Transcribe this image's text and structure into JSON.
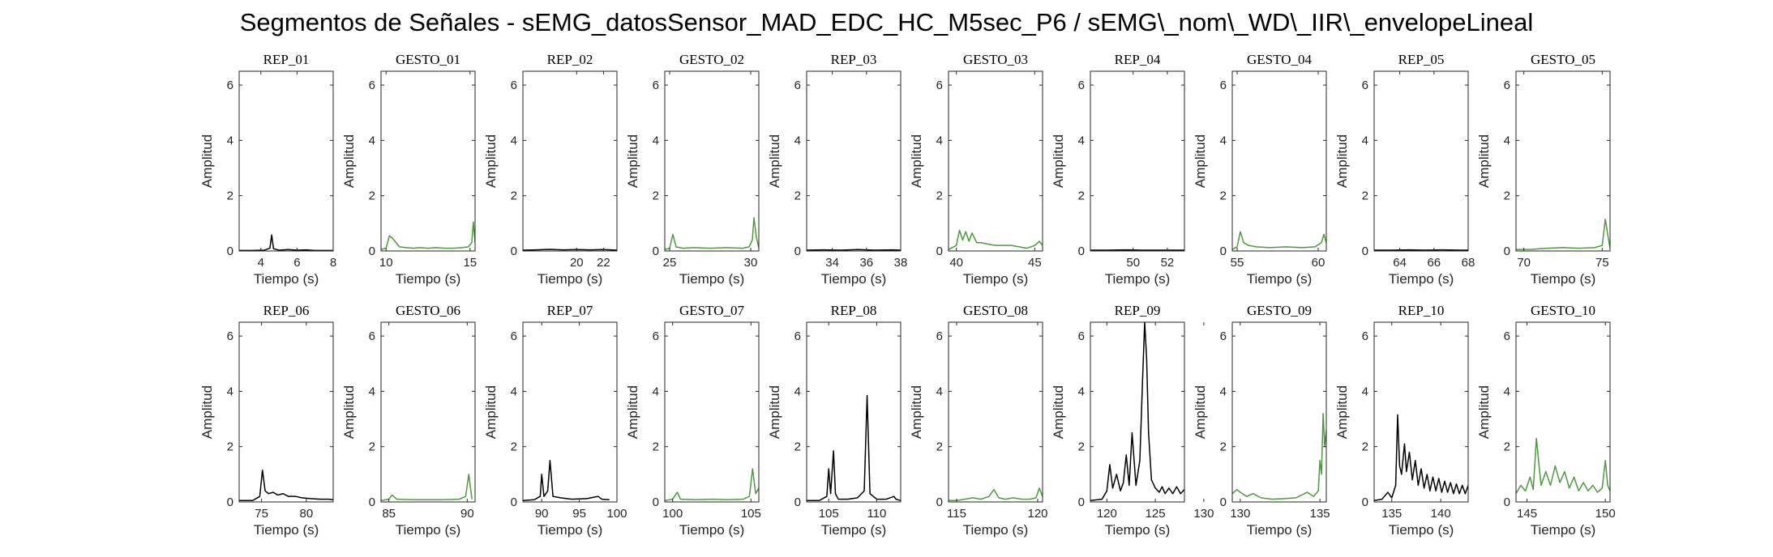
{
  "title": "Segmentos de Señales - sEMG_datosSensor_MAD_EDC_HC_M5sec_P6 / sEMG\\_nom\\_WD\\_IIR\\_envelopeLineal",
  "colors": {
    "rep": "#000000",
    "gesto": "#4e9a3f",
    "axis": "#262626"
  },
  "chart_data": [
    {
      "type": "line",
      "title": "REP_01",
      "xlabel": "Tiempo (s)",
      "ylabel": "Amplitud",
      "xlim": [
        2.8,
        8
      ],
      "ylim": [
        0,
        6.5
      ],
      "xticks": [
        4,
        6,
        8
      ],
      "yticks": [
        0,
        2,
        4,
        6
      ],
      "color": "rep",
      "x": [
        2.8,
        3.5,
        4.2,
        4.5,
        4.6,
        4.7,
        5.0,
        5.5,
        6.0,
        6.5,
        7.0,
        7.5,
        8.0
      ],
      "y": [
        0.02,
        0.02,
        0.03,
        0.1,
        0.58,
        0.08,
        0.03,
        0.05,
        0.03,
        0.04,
        0.02,
        0.02,
        0.02
      ]
    },
    {
      "type": "line",
      "title": "GESTO_01",
      "xlabel": "Tiempo (s)",
      "ylabel": "Amplitud",
      "xlim": [
        9.7,
        15.3
      ],
      "ylim": [
        0,
        6.5
      ],
      "xticks": [
        10,
        15
      ],
      "yticks": [
        0,
        2,
        4,
        6
      ],
      "color": "gesto",
      "x": [
        9.7,
        10.0,
        10.2,
        10.4,
        10.6,
        10.8,
        11.2,
        11.6,
        12.0,
        12.5,
        13.0,
        13.5,
        14.0,
        14.5,
        14.9,
        15.1,
        15.2,
        15.3
      ],
      "y": [
        0.05,
        0.1,
        0.55,
        0.45,
        0.3,
        0.15,
        0.12,
        0.1,
        0.12,
        0.1,
        0.12,
        0.1,
        0.1,
        0.12,
        0.15,
        0.3,
        1.05,
        0.3
      ]
    },
    {
      "type": "line",
      "title": "REP_02",
      "xlabel": "Tiempo (s)",
      "ylabel": "Amplitud",
      "xlim": [
        16,
        23
      ],
      "ylim": [
        0,
        6.5
      ],
      "xticks": [
        20,
        22
      ],
      "yticks": [
        0,
        2,
        4,
        6
      ],
      "color": "rep",
      "x": [
        16,
        17,
        18,
        19,
        20,
        21,
        22,
        23
      ],
      "y": [
        0.03,
        0.04,
        0.06,
        0.04,
        0.05,
        0.04,
        0.05,
        0.03
      ]
    },
    {
      "type": "line",
      "title": "GESTO_02",
      "xlabel": "Tiempo (s)",
      "ylabel": "Amplitud",
      "xlim": [
        24.7,
        30.5
      ],
      "ylim": [
        0,
        6.5
      ],
      "xticks": [
        25,
        30
      ],
      "yticks": [
        0,
        2,
        4,
        6
      ],
      "color": "gesto",
      "x": [
        24.7,
        25.0,
        25.2,
        25.4,
        25.8,
        26.5,
        27.5,
        28.5,
        29.5,
        29.9,
        30.1,
        30.2,
        30.35,
        30.5
      ],
      "y": [
        0.05,
        0.1,
        0.6,
        0.15,
        0.1,
        0.12,
        0.1,
        0.12,
        0.1,
        0.15,
        0.4,
        1.2,
        0.5,
        0.1
      ]
    },
    {
      "type": "line",
      "title": "REP_03",
      "xlabel": "Tiempo (s)",
      "ylabel": "Amplitud",
      "xlim": [
        32.5,
        38
      ],
      "ylim": [
        0,
        6.5
      ],
      "xticks": [
        34,
        36,
        38
      ],
      "yticks": [
        0,
        2,
        4,
        6
      ],
      "color": "rep",
      "x": [
        32.5,
        33.5,
        34.5,
        35.5,
        36.5,
        37.5,
        38
      ],
      "y": [
        0.03,
        0.04,
        0.03,
        0.05,
        0.03,
        0.04,
        0.03
      ]
    },
    {
      "type": "line",
      "title": "GESTO_03",
      "xlabel": "Tiempo (s)",
      "ylabel": "Amplitud",
      "xlim": [
        39.5,
        45.5
      ],
      "ylim": [
        0,
        6.5
      ],
      "xticks": [
        40,
        45
      ],
      "yticks": [
        0,
        2,
        4,
        6
      ],
      "color": "gesto",
      "x": [
        39.5,
        40.0,
        40.2,
        40.4,
        40.6,
        40.8,
        41.0,
        41.3,
        41.6,
        42.0,
        42.5,
        43.0,
        43.5,
        44.0,
        44.5,
        45.0,
        45.3,
        45.5
      ],
      "y": [
        0.05,
        0.2,
        0.75,
        0.4,
        0.7,
        0.35,
        0.65,
        0.3,
        0.3,
        0.25,
        0.2,
        0.2,
        0.2,
        0.15,
        0.1,
        0.2,
        0.35,
        0.2
      ]
    },
    {
      "type": "line",
      "title": "REP_04",
      "xlabel": "Tiempo (s)",
      "ylabel": "Amplitud",
      "xlim": [
        47.5,
        53
      ],
      "ylim": [
        0,
        6.5
      ],
      "xticks": [
        50,
        52
      ],
      "yticks": [
        0,
        2,
        4,
        6
      ],
      "color": "rep",
      "x": [
        47.5,
        48.5,
        49.5,
        50.5,
        51.5,
        52.5,
        53
      ],
      "y": [
        0.03,
        0.03,
        0.04,
        0.03,
        0.03,
        0.03,
        0.03
      ]
    },
    {
      "type": "line",
      "title": "GESTO_04",
      "xlabel": "Tiempo (s)",
      "ylabel": "Amplitud",
      "xlim": [
        54.7,
        60.5
      ],
      "ylim": [
        0,
        6.5
      ],
      "xticks": [
        55,
        60
      ],
      "yticks": [
        0,
        2,
        4,
        6
      ],
      "color": "gesto",
      "x": [
        54.7,
        55.0,
        55.2,
        55.4,
        55.7,
        56.2,
        57.0,
        58.0,
        59.0,
        59.8,
        60.2,
        60.35,
        60.5
      ],
      "y": [
        0.05,
        0.15,
        0.7,
        0.3,
        0.2,
        0.15,
        0.12,
        0.15,
        0.12,
        0.15,
        0.3,
        0.6,
        0.3
      ]
    },
    {
      "type": "line",
      "title": "REP_05",
      "xlabel": "Tiempo (s)",
      "ylabel": "Amplitud",
      "xlim": [
        62.5,
        68
      ],
      "ylim": [
        0,
        6.5
      ],
      "xticks": [
        64,
        66,
        68
      ],
      "yticks": [
        0,
        2,
        4,
        6
      ],
      "color": "rep",
      "x": [
        62.5,
        63.5,
        64.5,
        65.5,
        66.5,
        67.5,
        68
      ],
      "y": [
        0.03,
        0.03,
        0.04,
        0.03,
        0.04,
        0.03,
        0.03
      ]
    },
    {
      "type": "line",
      "title": "GESTO_05",
      "xlabel": "Tiempo (s)",
      "ylabel": "Amplitud",
      "xlim": [
        69.5,
        75.5
      ],
      "ylim": [
        0,
        6.5
      ],
      "xticks": [
        70,
        75
      ],
      "yticks": [
        0,
        2,
        4,
        6
      ],
      "color": "gesto",
      "x": [
        69.5,
        70.5,
        71.5,
        72.5,
        73.5,
        74.5,
        75.0,
        75.2,
        75.35,
        75.5
      ],
      "y": [
        0.05,
        0.06,
        0.1,
        0.12,
        0.1,
        0.12,
        0.2,
        1.15,
        0.6,
        0.1
      ]
    },
    {
      "type": "line",
      "title": "REP_06",
      "xlabel": "Tiempo (s)",
      "ylabel": "Amplitud",
      "xlim": [
        72.5,
        83
      ],
      "ylim": [
        0,
        6.5
      ],
      "xticks": [
        75,
        80
      ],
      "yticks": [
        0,
        2,
        4,
        6
      ],
      "color": "rep",
      "x": [
        72.5,
        74.0,
        74.8,
        75.1,
        75.4,
        75.8,
        76.3,
        76.8,
        77.4,
        78.0,
        78.8,
        79.5,
        80.5,
        81.5,
        82.5,
        83.0
      ],
      "y": [
        0.05,
        0.05,
        0.2,
        1.15,
        0.4,
        0.3,
        0.35,
        0.25,
        0.3,
        0.2,
        0.2,
        0.15,
        0.12,
        0.1,
        0.1,
        0.08
      ]
    },
    {
      "type": "line",
      "title": "GESTO_06",
      "xlabel": "Tiempo (s)",
      "ylabel": "Amplitud",
      "xlim": [
        84.5,
        90.5
      ],
      "ylim": [
        0,
        6.5
      ],
      "xticks": [
        85,
        90
      ],
      "yticks": [
        0,
        2,
        4,
        6
      ],
      "color": "gesto",
      "x": [
        84.5,
        85.0,
        85.2,
        85.5,
        86.5,
        87.5,
        88.5,
        89.5,
        89.9,
        90.1,
        90.3
      ],
      "y": [
        0.05,
        0.1,
        0.25,
        0.1,
        0.08,
        0.08,
        0.08,
        0.1,
        0.2,
        1.0,
        0.1
      ]
    },
    {
      "type": "line",
      "title": "REP_07",
      "xlabel": "Tiempo (s)",
      "ylabel": "Amplitud",
      "xlim": [
        87.5,
        100
      ],
      "ylim": [
        0,
        6.5
      ],
      "xticks": [
        90,
        95,
        100
      ],
      "yticks": [
        0,
        2,
        4,
        6
      ],
      "color": "rep",
      "x": [
        87.5,
        89.0,
        89.8,
        90.0,
        90.3,
        90.8,
        91.1,
        91.5,
        92.5,
        94.0,
        96.0,
        97.5,
        98.0,
        99.0
      ],
      "y": [
        0.05,
        0.08,
        0.2,
        1.0,
        0.2,
        0.4,
        1.5,
        0.2,
        0.15,
        0.1,
        0.12,
        0.2,
        0.1,
        0.08
      ]
    },
    {
      "type": "line",
      "title": "GESTO_07",
      "xlabel": "Tiempo (s)",
      "ylabel": "Amplitud",
      "xlim": [
        99.5,
        105.5
      ],
      "ylim": [
        0,
        6.5
      ],
      "xticks": [
        100,
        105
      ],
      "yticks": [
        0,
        2,
        4,
        6
      ],
      "color": "gesto",
      "x": [
        99.5,
        100.0,
        100.3,
        100.5,
        101.5,
        102.5,
        103.5,
        104.5,
        104.9,
        105.1,
        105.3,
        105.5
      ],
      "y": [
        0.05,
        0.1,
        0.35,
        0.1,
        0.08,
        0.1,
        0.08,
        0.1,
        0.2,
        1.2,
        0.3,
        0.5
      ]
    },
    {
      "type": "line",
      "title": "REP_08",
      "xlabel": "Tiempo (s)",
      "ylabel": "Amplitud",
      "xlim": [
        102.7,
        112.5
      ],
      "ylim": [
        0,
        6.5
      ],
      "xticks": [
        105,
        110
      ],
      "yticks": [
        0,
        2,
        4,
        6
      ],
      "color": "rep",
      "x": [
        102.7,
        104.0,
        104.8,
        105.0,
        105.2,
        105.5,
        105.7,
        106.0,
        107.0,
        108.0,
        108.7,
        109.0,
        109.3,
        110.0,
        111.0,
        111.8,
        112.0,
        112.5
      ],
      "y": [
        0.05,
        0.05,
        0.2,
        1.2,
        0.3,
        1.85,
        0.3,
        0.1,
        0.1,
        0.15,
        0.4,
        3.85,
        0.3,
        0.1,
        0.1,
        0.2,
        0.1,
        0.05
      ]
    },
    {
      "type": "line",
      "title": "GESTO_08",
      "xlabel": "Tiempo (s)",
      "ylabel": "Amplitud",
      "xlim": [
        114.5,
        120.3
      ],
      "ylim": [
        0,
        6.5
      ],
      "xticks": [
        115,
        120
      ],
      "yticks": [
        0,
        2,
        4,
        6
      ],
      "color": "gesto",
      "x": [
        114.5,
        115.0,
        115.5,
        116.0,
        116.5,
        117.0,
        117.3,
        117.6,
        118.0,
        118.5,
        119.0,
        119.5,
        119.9,
        120.1,
        120.3
      ],
      "y": [
        0.05,
        0.05,
        0.1,
        0.15,
        0.1,
        0.2,
        0.45,
        0.15,
        0.1,
        0.15,
        0.1,
        0.1,
        0.15,
        0.5,
        0.2
      ]
    },
    {
      "type": "line",
      "title": "REP_09",
      "xlabel": "Tiempo (s)",
      "ylabel": "Amplitud",
      "xlim": [
        118.3,
        128
      ],
      "ylim": [
        0,
        6.5
      ],
      "xticks": [
        120,
        125,
        130
      ],
      "yticks": [
        0,
        2,
        4,
        6
      ],
      "color": "rep",
      "x": [
        118.3,
        119.5,
        120.0,
        120.3,
        120.6,
        121.0,
        121.4,
        121.7,
        122.0,
        122.3,
        122.6,
        123.0,
        123.4,
        123.7,
        123.9,
        124.1,
        124.3,
        124.6,
        125.0,
        125.4,
        125.7,
        126.0,
        126.4,
        126.8,
        127.2,
        127.6,
        128.0
      ],
      "y": [
        0.05,
        0.1,
        0.4,
        1.35,
        0.5,
        1.0,
        0.4,
        0.7,
        1.7,
        0.6,
        2.5,
        0.6,
        1.5,
        4.6,
        6.5,
        5.2,
        2.5,
        0.8,
        0.5,
        0.35,
        0.55,
        0.3,
        0.5,
        0.3,
        0.55,
        0.3,
        0.45
      ]
    },
    {
      "type": "line",
      "title": "GESTO_09",
      "xlabel": "Tiempo (s)",
      "ylabel": "Amplitud",
      "xlim": [
        129.5,
        135.4
      ],
      "ylim": [
        0,
        6.5
      ],
      "xticks": [
        130,
        135
      ],
      "yticks": [
        0,
        2,
        4,
        6
      ],
      "color": "gesto",
      "x": [
        129.5,
        129.8,
        130.0,
        130.4,
        130.8,
        131.3,
        132.0,
        132.8,
        133.5,
        134.2,
        134.6,
        134.9,
        135.0,
        135.1,
        135.2,
        135.3,
        135.4
      ],
      "y": [
        0.3,
        0.45,
        0.35,
        0.2,
        0.3,
        0.15,
        0.1,
        0.12,
        0.15,
        0.35,
        0.2,
        0.4,
        1.5,
        1.0,
        3.2,
        2.0,
        2.6
      ]
    },
    {
      "type": "line",
      "title": "REP_10",
      "xlabel": "Tiempo (s)",
      "ylabel": "Amplitud",
      "xlim": [
        133.2,
        142.8
      ],
      "ylim": [
        0,
        6.5
      ],
      "xticks": [
        135,
        140
      ],
      "yticks": [
        0,
        2,
        4,
        6
      ],
      "color": "rep",
      "x": [
        133.2,
        134.0,
        134.6,
        135.0,
        135.4,
        135.6,
        135.8,
        136.0,
        136.3,
        136.5,
        136.8,
        137.1,
        137.4,
        137.7,
        138.0,
        138.3,
        138.6,
        138.9,
        139.2,
        139.5,
        139.8,
        140.1,
        140.4,
        140.7,
        141.0,
        141.3,
        141.6,
        141.9,
        142.2,
        142.5,
        142.8
      ],
      "y": [
        0.05,
        0.1,
        0.35,
        0.15,
        0.6,
        3.15,
        1.3,
        1.0,
        2.1,
        1.1,
        1.8,
        0.8,
        1.5,
        0.6,
        1.2,
        0.5,
        1.0,
        0.4,
        0.9,
        0.4,
        0.85,
        0.35,
        0.75,
        0.35,
        0.7,
        0.3,
        0.65,
        0.3,
        0.6,
        0.3,
        0.6
      ]
    },
    {
      "type": "line",
      "title": "GESTO_10",
      "xlabel": "Tiempo (s)",
      "ylabel": "Amplitud",
      "xlim": [
        144.3,
        150.3
      ],
      "ylim": [
        0,
        6.5
      ],
      "xticks": [
        145,
        150
      ],
      "yticks": [
        0,
        2,
        4,
        6
      ],
      "color": "gesto",
      "x": [
        144.3,
        144.6,
        144.9,
        145.2,
        145.4,
        145.6,
        145.9,
        146.2,
        146.5,
        146.8,
        147.1,
        147.4,
        147.7,
        148.0,
        148.3,
        148.6,
        148.9,
        149.2,
        149.5,
        149.8,
        150.0,
        150.15,
        150.3
      ],
      "y": [
        0.3,
        0.6,
        0.4,
        0.9,
        0.45,
        2.3,
        0.6,
        1.1,
        0.6,
        1.3,
        0.7,
        1.1,
        0.5,
        0.9,
        0.4,
        0.7,
        0.4,
        0.6,
        0.35,
        0.5,
        1.5,
        0.6,
        0.4
      ]
    }
  ]
}
